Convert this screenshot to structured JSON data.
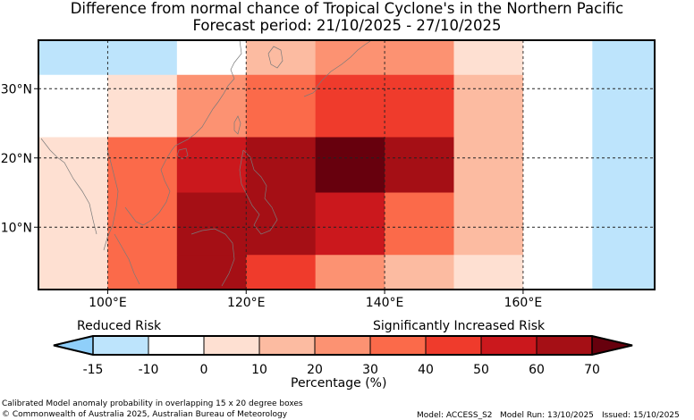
{
  "title_line1": "Difference from normal chance of Tropical Cyclone's in the Northern Pacific",
  "title_line2": "Forecast period: 21/10/2025 - 27/10/2025",
  "chart_data": {
    "type": "heatmap",
    "title": "Difference from normal chance of Tropical Cyclone's in the Northern Pacific",
    "subtitle": "Forecast period: 21/10/2025 - 27/10/2025",
    "x_ticks": [
      "100°E",
      "120°E",
      "140°E",
      "160°E"
    ],
    "y_ticks": [
      "30°N",
      "20°N",
      "10°N"
    ],
    "lon_range": [
      90,
      179
    ],
    "lat_range": [
      1,
      37
    ],
    "rows": [
      {
        "lat": [
          32,
          37
        ],
        "cells": [
          {
            "lon": [
              90,
              110
            ],
            "v": -15
          },
          {
            "lon": [
              110,
              120
            ],
            "v": -3
          },
          {
            "lon": [
              120,
              130
            ],
            "v": 15
          },
          {
            "lon": [
              130,
              140
            ],
            "v": 25
          },
          {
            "lon": [
              140,
              150
            ],
            "v": 25
          },
          {
            "lon": [
              150,
              160
            ],
            "v": 5
          },
          {
            "lon": [
              160,
              170
            ],
            "v": -3
          },
          {
            "lon": [
              170,
              179
            ],
            "v": -15
          }
        ]
      },
      {
        "lat": [
          23,
          32
        ],
        "cells": [
          {
            "lon": [
              90,
              100
            ],
            "v": -3
          },
          {
            "lon": [
              100,
              110
            ],
            "v": 5
          },
          {
            "lon": [
              110,
              120
            ],
            "v": 25
          },
          {
            "lon": [
              120,
              130
            ],
            "v": 35
          },
          {
            "lon": [
              130,
              140
            ],
            "v": 45
          },
          {
            "lon": [
              140,
              150
            ],
            "v": 45
          },
          {
            "lon": [
              150,
              160
            ],
            "v": 15
          },
          {
            "lon": [
              160,
              170
            ],
            "v": -5
          },
          {
            "lon": [
              170,
              179
            ],
            "v": -15
          }
        ]
      },
      {
        "lat": [
          15,
          23
        ],
        "cells": [
          {
            "lon": [
              90,
              100
            ],
            "v": 5
          },
          {
            "lon": [
              100,
              110
            ],
            "v": 35
          },
          {
            "lon": [
              110,
              120
            ],
            "v": 55
          },
          {
            "lon": [
              120,
              130
            ],
            "v": 65
          },
          {
            "lon": [
              130,
              140
            ],
            "v": 75
          },
          {
            "lon": [
              140,
              150
            ],
            "v": 65
          },
          {
            "lon": [
              150,
              160
            ],
            "v": 15
          },
          {
            "lon": [
              160,
              170
            ],
            "v": -5
          },
          {
            "lon": [
              170,
              179
            ],
            "v": -15
          }
        ]
      },
      {
        "lat": [
          6,
          15
        ],
        "cells": [
          {
            "lon": [
              90,
              100
            ],
            "v": 5
          },
          {
            "lon": [
              100,
              110
            ],
            "v": 35
          },
          {
            "lon": [
              110,
              120
            ],
            "v": 65
          },
          {
            "lon": [
              120,
              130
            ],
            "v": 65
          },
          {
            "lon": [
              130,
              140
            ],
            "v": 55
          },
          {
            "lon": [
              140,
              150
            ],
            "v": 35
          },
          {
            "lon": [
              150,
              160
            ],
            "v": 15
          },
          {
            "lon": [
              160,
              170
            ],
            "v": -5
          },
          {
            "lon": [
              170,
              179
            ],
            "v": -15
          }
        ]
      },
      {
        "lat": [
          1,
          6
        ],
        "cells": [
          {
            "lon": [
              90,
              100
            ],
            "v": 5
          },
          {
            "lon": [
              100,
              110
            ],
            "v": 35
          },
          {
            "lon": [
              110,
              120
            ],
            "v": 65
          },
          {
            "lon": [
              120,
              130
            ],
            "v": 45
          },
          {
            "lon": [
              130,
              140
            ],
            "v": 25
          },
          {
            "lon": [
              140,
              150
            ],
            "v": 15
          },
          {
            "lon": [
              150,
              160
            ],
            "v": 5
          },
          {
            "lon": [
              160,
              170
            ],
            "v": -5
          },
          {
            "lon": [
              170,
              179
            ],
            "v": -15
          }
        ]
      }
    ],
    "colorbar": {
      "bounds": [
        -15,
        -10,
        0,
        10,
        20,
        30,
        40,
        50,
        60,
        70
      ],
      "tick_labels": [
        "-15",
        "-10",
        "0",
        "10",
        "20",
        "30",
        "40",
        "50",
        "60",
        "70"
      ],
      "colors": [
        "#bde4fc",
        "#ffffff",
        "#fee0d2",
        "#fcbba1",
        "#fc9272",
        "#fb6a4a",
        "#ef3b2c",
        "#cb181d",
        "#a50f15"
      ],
      "under_color": "#8fcffa",
      "over_color": "#67000d",
      "label": "Percentage (%)",
      "left_label": "Reduced Risk",
      "right_label": "Significantly Increased Risk"
    }
  },
  "footer": {
    "line1": "Calibrated Model anomaly probability in overlapping 15 x 20 degree boxes",
    "line2": "© Commonwealth of Australia 2025, Australian Bureau of Meteorology",
    "model": "Model: ACCESS_S2",
    "run": "Model Run: 13/10/2025",
    "issued": "Issued: 15/10/2025"
  }
}
